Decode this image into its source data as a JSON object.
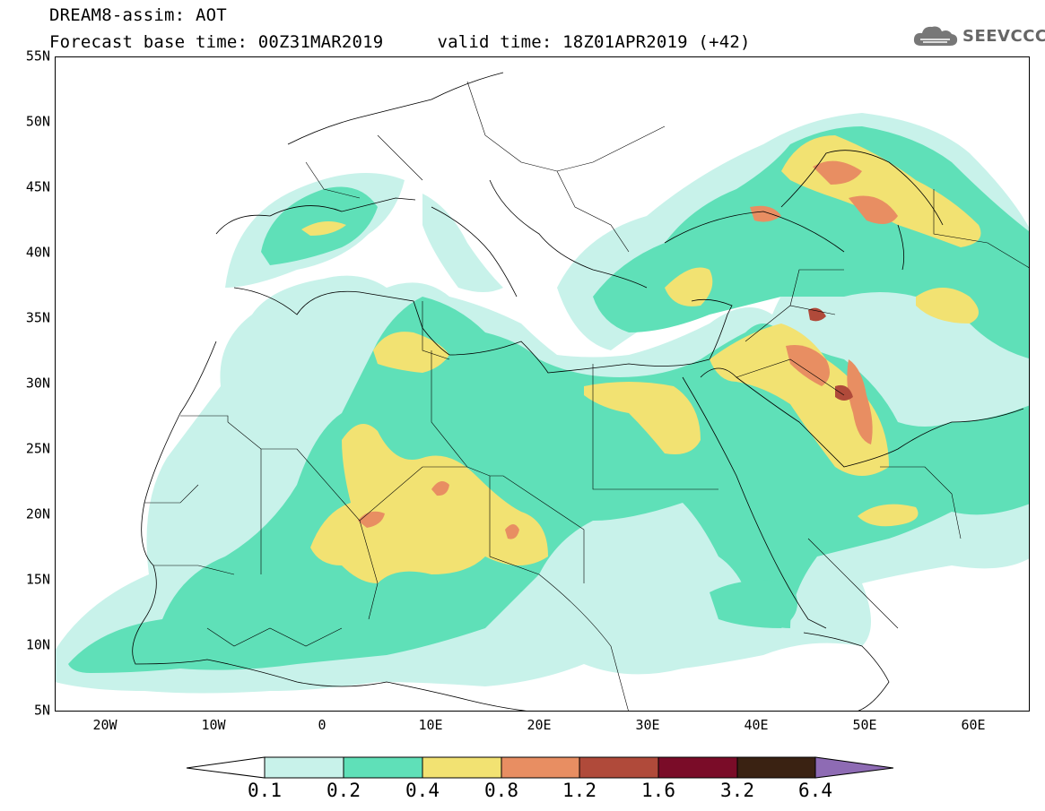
{
  "header": {
    "title": "DREAM8-assim: AOT",
    "base_time": "Forecast base time: 00Z31MAR2019",
    "valid_time": "valid time: 18Z01APR2019 (+42)",
    "logo_text": "SEEVCCC",
    "logo_icon": "cloud-icon"
  },
  "map": {
    "projection": "equirectangular",
    "lon_range": [
      -25,
      65
    ],
    "lat_range": [
      5,
      55
    ],
    "lat_ticks": [
      {
        "value": 55,
        "label": "55N"
      },
      {
        "value": 50,
        "label": "50N"
      },
      {
        "value": 45,
        "label": "45N"
      },
      {
        "value": 40,
        "label": "40N"
      },
      {
        "value": 35,
        "label": "35N"
      },
      {
        "value": 30,
        "label": "30N"
      },
      {
        "value": 25,
        "label": "25N"
      },
      {
        "value": 20,
        "label": "20N"
      },
      {
        "value": 15,
        "label": "15N"
      },
      {
        "value": 10,
        "label": "10N"
      },
      {
        "value": 5,
        "label": "5N"
      }
    ],
    "lon_ticks": [
      {
        "value": -20,
        "label": "20W"
      },
      {
        "value": -10,
        "label": "10W"
      },
      {
        "value": 0,
        "label": "0"
      },
      {
        "value": 10,
        "label": "10E"
      },
      {
        "value": 20,
        "label": "20E"
      },
      {
        "value": 30,
        "label": "30E"
      },
      {
        "value": 40,
        "label": "40E"
      },
      {
        "value": 50,
        "label": "50E"
      },
      {
        "value": 60,
        "label": "60E"
      }
    ],
    "field": "Aerosol Optical Thickness"
  },
  "colorbar": {
    "labels": [
      "0.1",
      "0.2",
      "0.4",
      "0.8",
      "1.2",
      "1.6",
      "3.2",
      "6.4"
    ],
    "colors": [
      "#c8f2ea",
      "#5fe0b8",
      "#f2e272",
      "#e88e62",
      "#b04a3a",
      "#7a0c28",
      "#3a2212"
    ],
    "under_color": "#ffffff",
    "over_color": "#8e6bb4"
  }
}
